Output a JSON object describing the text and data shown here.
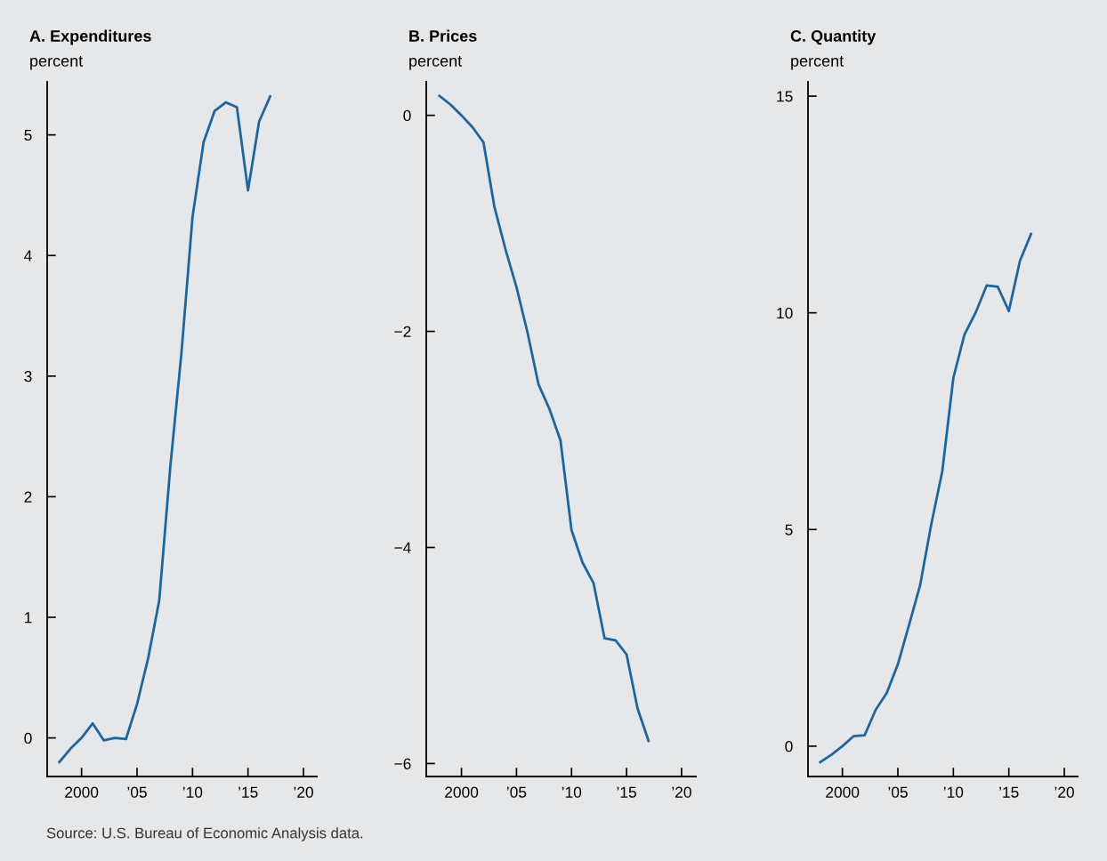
{
  "chart_data": [
    {
      "type": "line",
      "title": "A. Expenditures",
      "ylabel": "percent",
      "x": [
        1998,
        1999,
        2000,
        2001,
        2002,
        2003,
        2004,
        2005,
        2006,
        2007,
        2008,
        2009,
        2010,
        2011,
        2012,
        2013,
        2014,
        2015,
        2016,
        2017
      ],
      "series": [
        {
          "color": "#1a66a3",
          "values": [
            -0.2,
            -0.09,
            0,
            0.12,
            -0.02,
            0,
            -0.01,
            0.28,
            0.66,
            1.14,
            2.25,
            3.19,
            4.32,
            4.94,
            5.2,
            5.27,
            5.23,
            4.54,
            5.11,
            5.32
          ]
        }
      ],
      "xlim": [
        1996.9,
        2021.2
      ],
      "xticks": [
        2000,
        {
          "value": 2005,
          "label": "’05"
        },
        {
          "value": 2010,
          "label": "’10"
        },
        {
          "value": 2015,
          "label": "’15"
        },
        {
          "value": 2020,
          "label": "’20"
        }
      ],
      "ylim": [
        -0.32,
        5.44
      ],
      "yticks": [
        0,
        1,
        2,
        3,
        4,
        5
      ],
      "grid": false,
      "annotations": [
        "Source: U.S. Bureau of Economic Analysis data."
      ]
    },
    {
      "type": "line",
      "title": "B. Prices",
      "ylabel": "percent",
      "x": [
        1998,
        1999,
        2000,
        2001,
        2002,
        2003,
        2004,
        2005,
        2006,
        2007,
        2008,
        2009,
        2010,
        2011,
        2012,
        2013,
        2014,
        2015,
        2016,
        2017
      ],
      "series": [
        {
          "color": "#1a66a3",
          "values": [
            0.18,
            0.1,
            0,
            -0.11,
            -0.25,
            -0.85,
            -1.24,
            -1.59,
            -2.01,
            -2.49,
            -2.72,
            -3.01,
            -3.84,
            -4.14,
            -4.33,
            -4.84,
            -4.86,
            -4.99,
            -5.49,
            -5.79
          ]
        }
      ],
      "xlim": [
        1996.8,
        2021.3
      ],
      "xticks": [
        2000,
        {
          "value": 2005,
          "label": "’05"
        },
        {
          "value": 2010,
          "label": "’10"
        },
        {
          "value": 2015,
          "label": "’15"
        },
        {
          "value": 2020,
          "label": "’20"
        }
      ],
      "ylim": [
        -6.12,
        0.31
      ],
      "yticks": [
        {
          "value": -6,
          "label": "−6"
        },
        {
          "value": -4,
          "label": "−4"
        },
        {
          "value": -2,
          "label": "−2"
        },
        0
      ],
      "grid": false
    },
    {
      "type": "line",
      "title": "C. Quantity",
      "ylabel": "percent",
      "x": [
        1998,
        1999,
        2000,
        2001,
        2002,
        2003,
        2004,
        2005,
        2006,
        2007,
        2008,
        2009,
        2010,
        2011,
        2012,
        2013,
        2014,
        2015,
        2016,
        2017
      ],
      "series": [
        {
          "color": "#1a66a3",
          "values": [
            -0.37,
            -0.2,
            0,
            0.23,
            0.25,
            0.84,
            1.23,
            1.89,
            2.79,
            3.71,
            5.11,
            6.34,
            8.5,
            9.5,
            10.0,
            10.63,
            10.6,
            10.04,
            11.2,
            11.82
          ]
        }
      ],
      "xlim": [
        1996.9,
        2021.2
      ],
      "xticks": [
        2000,
        {
          "value": 2005,
          "label": "’05"
        },
        {
          "value": 2010,
          "label": "’10"
        },
        {
          "value": 2015,
          "label": "’15"
        },
        {
          "value": 2020,
          "label": "’20"
        }
      ],
      "ylim": [
        -0.7,
        15.33
      ],
      "yticks": [
        0,
        5,
        10,
        15
      ],
      "grid": false
    }
  ]
}
